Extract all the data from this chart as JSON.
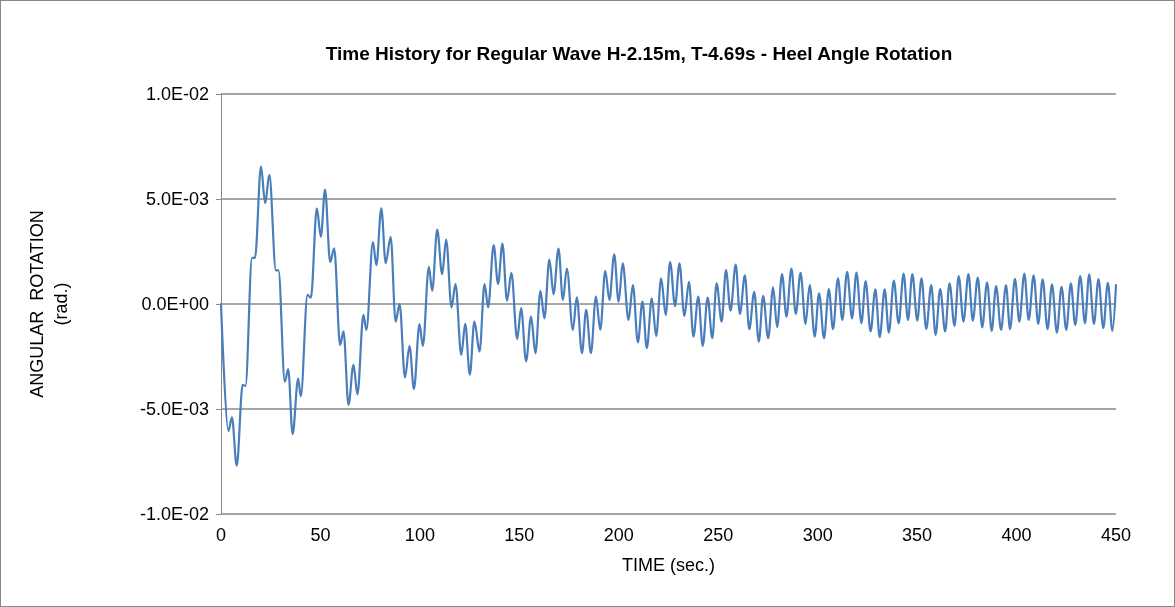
{
  "chart_data": {
    "type": "line",
    "title": "Time History for Regular Wave H-2.15m, T-4.69s - Heel Angle Rotation",
    "xlabel": "TIME (sec.)",
    "ylabel": "ANGULAR  ROTATION\n(rad.)",
    "xlim": [
      0,
      450
    ],
    "xticks": [
      0,
      50,
      100,
      150,
      200,
      250,
      300,
      350,
      400,
      450
    ],
    "ylim": [
      -0.01,
      0.01
    ],
    "yticks": [
      {
        "value": -0.01,
        "label": "-1.0E-02"
      },
      {
        "value": -0.005,
        "label": "-5.0E-03"
      },
      {
        "value": 0,
        "label": "0.0E+00"
      },
      {
        "value": 0.005,
        "label": "5.0E-03"
      },
      {
        "value": 0.01,
        "label": "1.0E-02"
      }
    ],
    "grid": "y",
    "marker": "none",
    "line_style": "solid",
    "series": [
      {
        "color": "#4a7ebb",
        "x": [
          0,
          3.7,
          5.5,
          7.9,
          10.9,
          12.3,
          15.6,
          17.1,
          20.1,
          22.2,
          24.3,
          27.6,
          28.9,
          32.1,
          33.8,
          36.0,
          38.8,
          40.1,
          43.5,
          45.2,
          48.2,
          50.2,
          52.3,
          54.9,
          56.9,
          59.9,
          61.6,
          64.1,
          66.6,
          68.6,
          71.6,
          73.1,
          76.4,
          78.1,
          80.6,
          82.8,
          85.3,
          87.8,
          89.8,
          92.5,
          94.8,
          97.0,
          99.8,
          101.5,
          104.5,
          106.2,
          108.7,
          111.2,
          113.2,
          115.9,
          117.9,
          120.8,
          122.8,
          125.1,
          127.4,
          130.0,
          132.5,
          134.3,
          137.1,
          139.3,
          141.5,
          143.8,
          146.0,
          148.9,
          150.9,
          153.4,
          155.9,
          158.1,
          160.6,
          162.6,
          165.1,
          167.2,
          169.7,
          171.9,
          173.9,
          176.9,
          178.9,
          181.5,
          183.6,
          186.0,
          188.5,
          190.7,
          193.2,
          195.3,
          197.7,
          199.9,
          202.0,
          204.9,
          207.1,
          209.6,
          211.9,
          214.1,
          216.6,
          218.8,
          221.3,
          223.6,
          225.8,
          228.3,
          230.5,
          233.0,
          235.3,
          237.5,
          240.0,
          242.2,
          244.7,
          247.0,
          249.2,
          251.7,
          253.9,
          256.2,
          258.8,
          260.9,
          263.4,
          265.6,
          268.1,
          270.4,
          272.6,
          275.1,
          277.6,
          279.6,
          282.1,
          284.3,
          286.8,
          289.0,
          291.4,
          293.9,
          296.0,
          298.5,
          300.7,
          303.2,
          305.6,
          307.7,
          310.2,
          312.4,
          314.8,
          317.3,
          319.5,
          322.0,
          324.1,
          326.6,
          329.0,
          331.2,
          333.7,
          335.8,
          338.3,
          340.7,
          343.2,
          345.4,
          347.6,
          350.1,
          352.2,
          354.6,
          357.1,
          359.3,
          361.6,
          364.1,
          366.3,
          368.8,
          370.9,
          373.3,
          375.8,
          378.0,
          380.5,
          382.7,
          385.2,
          387.5,
          389.7,
          392.2,
          394.7,
          396.7,
          399.2,
          401.4,
          403.9,
          406.1,
          408.6,
          410.9,
          413.1,
          415.6,
          417.8,
          420.3,
          422.6,
          425.0,
          427.3,
          429.5,
          432.0,
          434.4,
          436.5,
          438.9,
          441.2,
          443.6,
          445.9,
          448.2,
          450
        ],
        "values": [
          0,
          -0.00605,
          -0.0054,
          -0.0077,
          -0.00385,
          -0.0039,
          0.0022,
          0.0022,
          0.00655,
          0.0048,
          0.00615,
          0.0016,
          0.0016,
          -0.0037,
          -0.0031,
          -0.0062,
          -0.00355,
          -0.0044,
          0.00043,
          0.0003,
          0.00455,
          0.0032,
          0.00545,
          0.002,
          0.00265,
          -0.00195,
          -0.0013,
          -0.0048,
          -0.0029,
          -0.0043,
          -0.00052,
          -0.00123,
          0.00295,
          0.00185,
          0.00455,
          0.00195,
          0.0032,
          -0.00084,
          0,
          -0.0035,
          -0.002,
          -0.00405,
          -0.00096,
          -0.002,
          0.00177,
          0.00063,
          0.00354,
          0.00142,
          0.00307,
          -0.00016,
          0.00095,
          -0.00242,
          -0.00095,
          -0.00336,
          -0.00084,
          -0.00226,
          0.00095,
          -0.00016,
          0.0028,
          0.00095,
          0.00288,
          0.00016,
          0.00148,
          -0.00167,
          -0.0002,
          -0.00273,
          -0.0006,
          -0.00234,
          0.00063,
          -0.00068,
          0.00212,
          0.00047,
          0.00264,
          0.00019,
          0.00169,
          -0.00123,
          0.00032,
          -0.00234,
          -0.00028,
          -0.00234,
          0.00035,
          -0.00123,
          0.00158,
          0.00019,
          0.00237,
          0.00011,
          0.00193,
          -0.00076,
          0.0009,
          -0.00183,
          0.00011,
          -0.0021,
          0.00027,
          -0.00152,
          0.00122,
          -0.00052,
          0.002,
          -0.0001,
          0.00193,
          -0.00057,
          0.00106,
          -0.00155,
          0.00035,
          -0.00199,
          0.0003,
          -0.00163,
          0.00098,
          -0.00084,
          0.00161,
          -0.00032,
          0.00188,
          -0.00047,
          0.00137,
          -0.0012,
          0.00058,
          -0.00179,
          0.00039,
          -0.00163,
          0.00079,
          -0.0011,
          0.00142,
          -0.0006,
          0.00169,
          -0.00047,
          0.00148,
          -0.00095,
          0.0009,
          -0.00155,
          0.00051,
          -0.00163,
          0.00071,
          -0.0012,
          0.00122,
          -0.00076,
          0.00153,
          -0.00068,
          0.0015,
          -0.00091,
          0.00109,
          -0.00131,
          0.0007,
          -0.00158,
          0.0007,
          -0.00136,
          0.00111,
          -0.00092,
          0.00145,
          -0.00076,
          0.00142,
          -0.00079,
          0.00122,
          -0.00119,
          0.0009,
          -0.00147,
          0.00071,
          -0.00131,
          0.00098,
          -0.00104,
          0.00133,
          -0.00084,
          0.00142,
          -0.00079,
          0.00126,
          -0.00111,
          0.00103,
          -0.00128,
          0.00085,
          -0.00123,
          0.0009,
          -0.0012,
          0.0012,
          -0.00084,
          0.00145,
          -0.00076,
          0.00137,
          -0.00095,
          0.00117,
          -0.0012,
          0.00093,
          -0.00136,
          0.00082,
          -0.00123,
          0.00098,
          -0.001,
          0.00133,
          -0.00092,
          0.00141,
          -0.00095,
          0.00119,
          -0.00115,
          0.00101,
          -0.00128,
          0.0009
        ]
      }
    ]
  }
}
